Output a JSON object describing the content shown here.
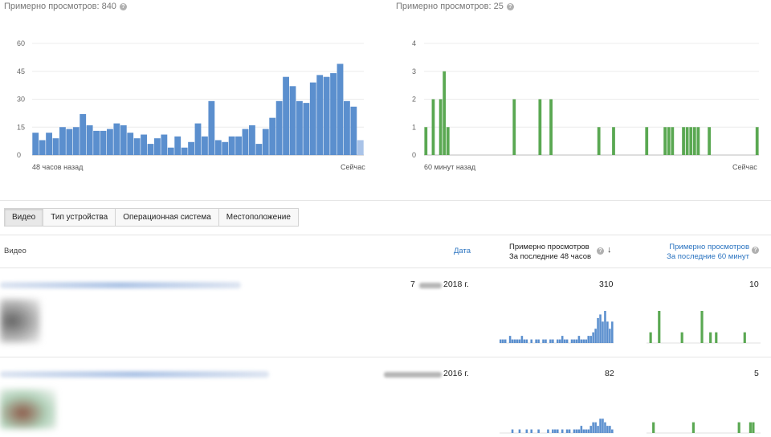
{
  "charts": {
    "views48": {
      "title": "Примерно просмотров: 840",
      "start_label": "48 часов назад",
      "end_label": "Сейчас",
      "color": "#5b8fce",
      "current_color": "#a9c3e8",
      "ylim": [
        0,
        60
      ],
      "ticks": [
        "0",
        "15",
        "30",
        "45",
        "60"
      ],
      "values": [
        12,
        8,
        12,
        9,
        15,
        14,
        15,
        22,
        16,
        13,
        13,
        14,
        17,
        16,
        12,
        9,
        11,
        6,
        9,
        11,
        4,
        10,
        4,
        7,
        17,
        10,
        29,
        8,
        7,
        10,
        10,
        14,
        16,
        6,
        14,
        20,
        29,
        42,
        37,
        29,
        28,
        39,
        43,
        42,
        44,
        49,
        29,
        26,
        8
      ]
    },
    "views60": {
      "title": "Примерно просмотров: 25",
      "start_label": "60 минут назад",
      "end_label": "Сейчас",
      "color": "#5aa852",
      "ylim": [
        0,
        4
      ],
      "ticks": [
        "0",
        "1",
        "2",
        "3",
        "4"
      ],
      "values": [
        1,
        0,
        2,
        0,
        2,
        3,
        1,
        0,
        0,
        0,
        0,
        0,
        0,
        0,
        0,
        0,
        0,
        0,
        0,
        0,
        0,
        0,
        0,
        0,
        2,
        0,
        0,
        0,
        0,
        0,
        0,
        2,
        0,
        0,
        2,
        0,
        0,
        0,
        0,
        0,
        0,
        0,
        0,
        0,
        0,
        0,
        0,
        1,
        0,
        0,
        0,
        1,
        0,
        0,
        0,
        0,
        0,
        0,
        0,
        0,
        1,
        0,
        0,
        0,
        0,
        1,
        1,
        1,
        0,
        0,
        1,
        1,
        1,
        1,
        1,
        0,
        0,
        1,
        0,
        0,
        0,
        0,
        0,
        0,
        0,
        0,
        0,
        0,
        0,
        0,
        1
      ]
    }
  },
  "tabs": [
    {
      "label": "Видео",
      "active": true
    },
    {
      "label": "Тип устройства",
      "active": false
    },
    {
      "label": "Операционная система",
      "active": false
    },
    {
      "label": "Местоположение",
      "active": false
    }
  ],
  "table": {
    "col_video": "Видео",
    "col_date": "Дата",
    "col_48_line1": "Примерно просмотров",
    "col_48_line2": "За последние 48 часов",
    "col_60_line1": "Примерно просмотров",
    "col_60_line2": "За последние 60 минут",
    "rows": [
      {
        "day": "7",
        "year": "2018 г.",
        "views48": "310",
        "views60": "10",
        "spark48": [
          1,
          1,
          1,
          0,
          2,
          1,
          1,
          1,
          1,
          2,
          1,
          1,
          0,
          1,
          0,
          1,
          1,
          0,
          1,
          1,
          0,
          1,
          1,
          0,
          1,
          1,
          2,
          1,
          1,
          0,
          1,
          1,
          1,
          2,
          1,
          1,
          1,
          2,
          2,
          3,
          4,
          7,
          8,
          6,
          9,
          6,
          4,
          6
        ],
        "spark60": [
          0,
          1,
          0,
          0,
          3,
          0,
          0,
          0,
          0,
          0,
          0,
          0,
          1,
          0,
          0,
          0,
          0,
          0,
          0,
          3,
          0,
          0,
          1,
          0,
          1,
          0,
          0,
          0,
          0,
          0,
          0,
          0,
          0,
          0,
          1,
          0,
          0,
          0,
          0,
          0
        ]
      },
      {
        "day": "",
        "year": "2016 г.",
        "views48": "82",
        "views60": "5",
        "spark48": [
          0,
          0,
          0,
          0,
          0,
          1,
          0,
          0,
          1,
          0,
          0,
          1,
          0,
          1,
          0,
          0,
          1,
          0,
          0,
          0,
          1,
          0,
          1,
          1,
          1,
          0,
          1,
          0,
          1,
          1,
          0,
          1,
          1,
          1,
          2,
          1,
          1,
          1,
          2,
          3,
          3,
          2,
          4,
          4,
          3,
          2,
          2,
          1
        ],
        "spark60": [
          0,
          0,
          1,
          0,
          0,
          0,
          0,
          0,
          0,
          0,
          0,
          0,
          0,
          0,
          0,
          0,
          1,
          0,
          0,
          0,
          0,
          0,
          0,
          0,
          0,
          0,
          0,
          0,
          0,
          0,
          0,
          0,
          1,
          0,
          0,
          0,
          1,
          1,
          0,
          0
        ]
      }
    ]
  }
}
